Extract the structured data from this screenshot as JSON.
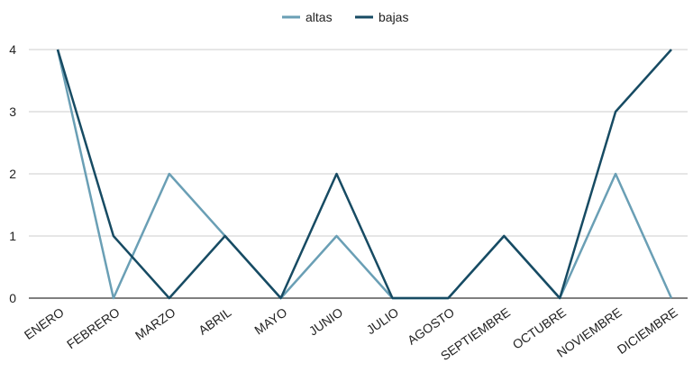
{
  "chart_data": {
    "type": "line",
    "categories": [
      "ENERO",
      "FEBRERO",
      "MARZO",
      "ABRIL",
      "MAYO",
      "JUNIO",
      "JULIO",
      "AGOSTO",
      "SEPTIEMBRE",
      "OCTUBRE",
      "NOVIEMBRE",
      "DICIEMBRE"
    ],
    "series": [
      {
        "name": "altas",
        "color": "#6a9fb5",
        "values": [
          4,
          0,
          2,
          1,
          0,
          1,
          0,
          0,
          1,
          0,
          2,
          0
        ]
      },
      {
        "name": "bajas",
        "color": "#174b63",
        "values": [
          4,
          1,
          0,
          1,
          0,
          2,
          0,
          0,
          1,
          0,
          3,
          4
        ]
      }
    ],
    "ylim": [
      0,
      4
    ],
    "yticks": [
      "0",
      "1",
      "2",
      "3",
      "4"
    ],
    "grid": true,
    "legend_position": "top-center"
  }
}
